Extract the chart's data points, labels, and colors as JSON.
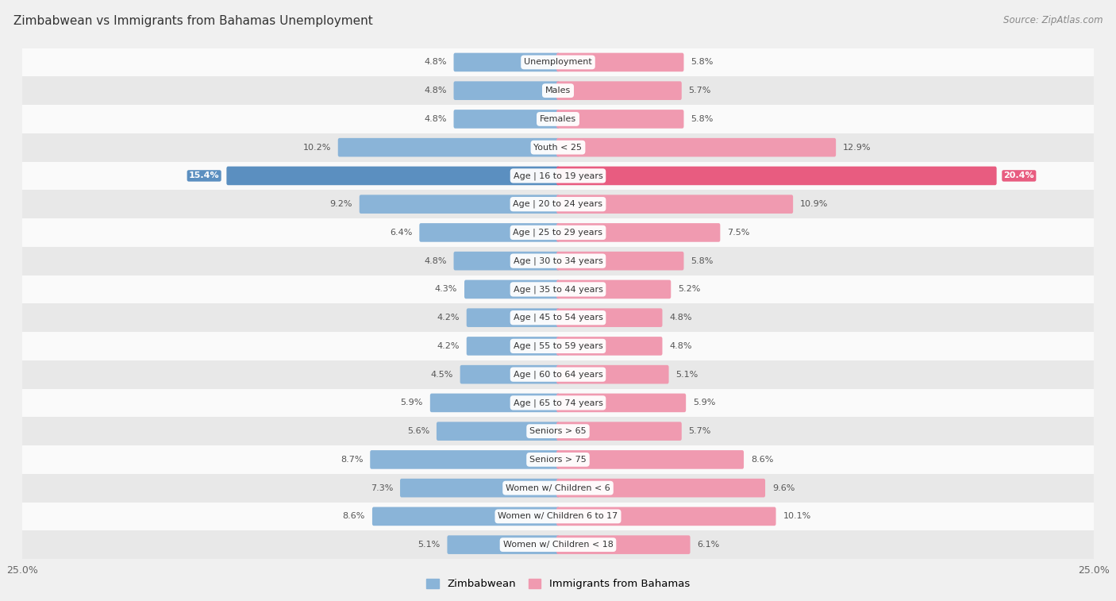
{
  "title": "Zimbabwean vs Immigrants from Bahamas Unemployment",
  "source": "Source: ZipAtlas.com",
  "categories": [
    "Unemployment",
    "Males",
    "Females",
    "Youth < 25",
    "Age | 16 to 19 years",
    "Age | 20 to 24 years",
    "Age | 25 to 29 years",
    "Age | 30 to 34 years",
    "Age | 35 to 44 years",
    "Age | 45 to 54 years",
    "Age | 55 to 59 years",
    "Age | 60 to 64 years",
    "Age | 65 to 74 years",
    "Seniors > 65",
    "Seniors > 75",
    "Women w/ Children < 6",
    "Women w/ Children 6 to 17",
    "Women w/ Children < 18"
  ],
  "zimbabwean": [
    4.8,
    4.8,
    4.8,
    10.2,
    15.4,
    9.2,
    6.4,
    4.8,
    4.3,
    4.2,
    4.2,
    4.5,
    5.9,
    5.6,
    8.7,
    7.3,
    8.6,
    5.1
  ],
  "bahamas": [
    5.8,
    5.7,
    5.8,
    12.9,
    20.4,
    10.9,
    7.5,
    5.8,
    5.2,
    4.8,
    4.8,
    5.1,
    5.9,
    5.7,
    8.6,
    9.6,
    10.1,
    6.1
  ],
  "zimbabwean_color": "#8ab4d8",
  "bahamas_color": "#f09ab0",
  "highlight_zim_color": "#5b8fc0",
  "highlight_bah_color": "#e85c80",
  "axis_max": 25.0,
  "bar_height": 0.52,
  "bg_color": "#f0f0f0",
  "row_light_color": "#fafafa",
  "row_dark_color": "#e8e8e8",
  "legend_zim": "Zimbabwean",
  "legend_bah": "Immigrants from Bahamas"
}
